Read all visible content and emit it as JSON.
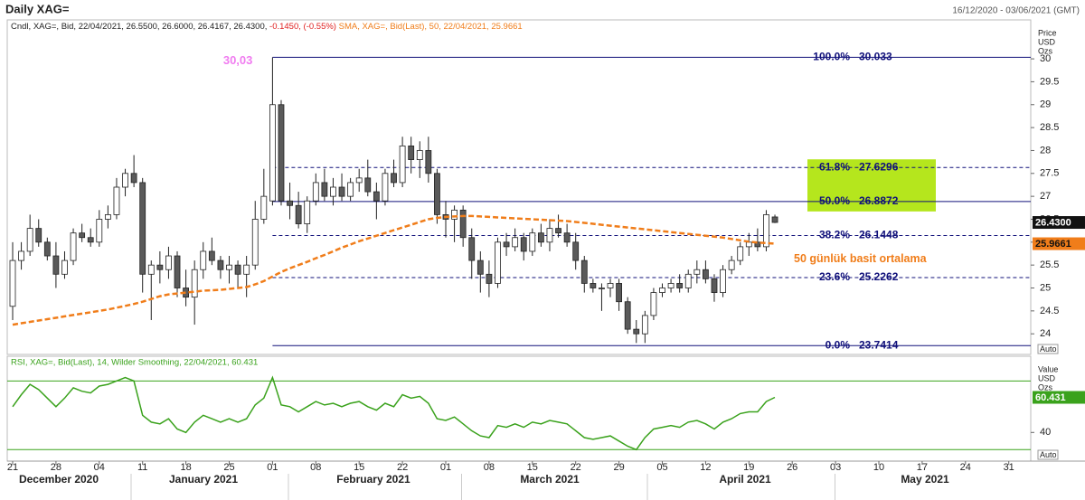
{
  "chart_data": {
    "type": "candlestick",
    "title": "Daily XAG=",
    "date_range": "16/12/2020 - 03/06/2021 (GMT)",
    "legend": {
      "candle": "Cndl, XAG=, Bid, 22/04/2021, 26.5500, 26.6000, 26.4167, 26.4300,",
      "change": "-0.1450, (-0.55%)",
      "sma": "SMA, XAG=, Bid(Last), 50, 22/04/2021, 25.9661"
    },
    "dates": [
      "2020-12-21",
      "2020-12-22",
      "2020-12-23",
      "2020-12-24",
      "2020-12-25",
      "2020-12-28",
      "2020-12-29",
      "2020-12-30",
      "2020-12-31",
      "2021-01-01",
      "2021-01-04",
      "2021-01-05",
      "2021-01-06",
      "2021-01-07",
      "2021-01-08",
      "2021-01-11",
      "2021-01-12",
      "2021-01-13",
      "2021-01-14",
      "2021-01-15",
      "2021-01-18",
      "2021-01-19",
      "2021-01-20",
      "2021-01-21",
      "2021-01-22",
      "2021-01-25",
      "2021-01-26",
      "2021-01-27",
      "2021-01-28",
      "2021-01-29",
      "2021-02-01",
      "2021-02-02",
      "2021-02-03",
      "2021-02-04",
      "2021-02-05",
      "2021-02-08",
      "2021-02-09",
      "2021-02-10",
      "2021-02-11",
      "2021-02-12",
      "2021-02-15",
      "2021-02-16",
      "2021-02-17",
      "2021-02-18",
      "2021-02-19",
      "2021-02-22",
      "2021-02-23",
      "2021-02-24",
      "2021-02-25",
      "2021-02-26",
      "2021-03-01",
      "2021-03-02",
      "2021-03-03",
      "2021-03-04",
      "2021-03-05",
      "2021-03-08",
      "2021-03-09",
      "2021-03-10",
      "2021-03-11",
      "2021-03-12",
      "2021-03-15",
      "2021-03-16",
      "2021-03-17",
      "2021-03-18",
      "2021-03-19",
      "2021-03-22",
      "2021-03-23",
      "2021-03-24",
      "2021-03-25",
      "2021-03-26",
      "2021-03-29",
      "2021-03-30",
      "2021-03-31",
      "2021-04-01",
      "2021-04-02",
      "2021-04-05",
      "2021-04-06",
      "2021-04-07",
      "2021-04-08",
      "2021-04-09",
      "2021-04-12",
      "2021-04-13",
      "2021-04-14",
      "2021-04-15",
      "2021-04-16",
      "2021-04-19",
      "2021-04-20",
      "2021-04-21",
      "2021-04-22"
    ],
    "open": [
      24.6,
      25.6,
      25.8,
      26.3,
      26.0,
      25.7,
      25.3,
      25.6,
      26.2,
      26.1,
      26.0,
      26.5,
      26.6,
      27.2,
      27.5,
      27.3,
      25.3,
      25.5,
      25.4,
      25.7,
      25.0,
      24.8,
      25.4,
      25.8,
      25.6,
      25.4,
      25.5,
      25.3,
      25.5,
      26.5,
      26.9,
      29.0,
      26.9,
      26.8,
      26.4,
      26.9,
      27.3,
      27.0,
      27.2,
      27.0,
      27.3,
      27.4,
      27.1,
      26.9,
      27.5,
      27.3,
      28.1,
      27.8,
      28.0,
      27.5,
      26.6,
      26.5,
      26.7,
      26.1,
      25.6,
      25.3,
      25.1,
      26.0,
      25.9,
      26.1,
      25.8,
      26.2,
      26.0,
      26.3,
      26.2,
      26.0,
      25.6,
      25.1,
      25.0,
      25.0,
      25.1,
      24.7,
      24.1,
      24.0,
      24.4,
      24.9,
      25.0,
      25.1,
      25.0,
      25.3,
      25.4,
      25.2,
      24.9,
      25.4,
      25.6,
      25.9,
      26.0,
      25.9,
      26.55
    ],
    "high": [
      26.0,
      26.0,
      26.6,
      26.5,
      26.1,
      26.0,
      25.8,
      26.3,
      26.4,
      26.3,
      26.7,
      26.8,
      27.4,
      27.6,
      27.9,
      27.4,
      25.6,
      25.8,
      25.9,
      25.8,
      25.4,
      25.6,
      26.0,
      26.1,
      25.7,
      25.7,
      25.6,
      25.7,
      26.9,
      27.6,
      30.03,
      29.1,
      27.3,
      27.1,
      27.0,
      27.5,
      27.6,
      27.4,
      27.5,
      27.4,
      27.6,
      27.8,
      27.3,
      27.6,
      27.8,
      28.3,
      28.3,
      28.2,
      28.3,
      27.6,
      26.9,
      26.8,
      26.8,
      26.3,
      25.8,
      25.6,
      26.1,
      26.2,
      26.3,
      26.2,
      26.3,
      26.4,
      26.5,
      26.6,
      26.4,
      26.2,
      25.7,
      25.2,
      25.1,
      25.2,
      25.2,
      24.8,
      24.3,
      24.5,
      25.0,
      25.1,
      25.2,
      25.3,
      25.4,
      25.6,
      25.6,
      25.3,
      25.5,
      25.7,
      26.0,
      26.2,
      26.3,
      26.7,
      26.6
    ],
    "low": [
      24.3,
      25.4,
      25.7,
      25.9,
      25.6,
      25.0,
      25.2,
      25.5,
      26.0,
      25.9,
      25.9,
      26.3,
      26.5,
      27.0,
      27.2,
      24.9,
      24.3,
      25.1,
      25.2,
      24.8,
      24.6,
      24.2,
      25.2,
      25.5,
      25.2,
      25.1,
      25.0,
      24.8,
      25.4,
      26.4,
      26.8,
      26.8,
      26.5,
      26.3,
      26.2,
      26.8,
      26.9,
      26.8,
      26.9,
      26.9,
      27.1,
      27.0,
      26.5,
      26.8,
      27.2,
      27.2,
      27.5,
      27.4,
      27.3,
      26.4,
      26.1,
      26.0,
      25.9,
      25.2,
      24.9,
      24.8,
      25.0,
      25.7,
      25.8,
      25.6,
      25.7,
      25.9,
      25.8,
      26.1,
      25.9,
      25.4,
      24.9,
      24.9,
      24.5,
      24.8,
      24.5,
      24.0,
      23.8,
      23.8,
      24.3,
      24.8,
      24.9,
      24.9,
      24.9,
      25.1,
      25.1,
      24.7,
      24.8,
      25.3,
      25.5,
      25.7,
      25.8,
      25.8,
      26.4167
    ],
    "close": [
      25.6,
      25.8,
      26.3,
      26.0,
      25.7,
      25.3,
      25.6,
      26.2,
      26.1,
      26.0,
      26.5,
      26.6,
      27.2,
      27.5,
      27.3,
      25.3,
      25.5,
      25.4,
      25.7,
      25.0,
      24.8,
      25.4,
      25.8,
      25.6,
      25.4,
      25.5,
      25.3,
      25.5,
      26.5,
      27.0,
      29.0,
      26.9,
      26.8,
      26.4,
      26.9,
      27.3,
      27.0,
      27.2,
      27.0,
      27.3,
      27.4,
      27.1,
      26.9,
      27.5,
      27.3,
      28.1,
      27.8,
      28.0,
      27.5,
      26.6,
      26.5,
      26.7,
      26.1,
      25.6,
      25.3,
      25.1,
      26.0,
      25.9,
      26.1,
      25.8,
      26.2,
      26.0,
      26.3,
      26.2,
      26.0,
      25.6,
      25.1,
      25.0,
      25.0,
      25.1,
      24.7,
      24.1,
      24.0,
      24.4,
      24.9,
      25.0,
      25.1,
      25.0,
      25.3,
      25.4,
      25.2,
      24.9,
      25.4,
      25.6,
      25.9,
      26.0,
      25.9,
      26.6,
      26.43
    ],
    "up_color": "#ffffff",
    "down_color": "#5a5a5a",
    "sma": {
      "color": "#f07d1a",
      "dashed": true,
      "values": [
        24.2,
        24.23,
        24.26,
        24.29,
        24.32,
        24.35,
        24.38,
        24.41,
        24.44,
        24.47,
        24.5,
        24.53,
        24.57,
        24.61,
        24.65,
        24.7,
        24.76,
        24.82,
        24.86,
        24.88,
        24.9,
        24.92,
        24.94,
        24.95,
        24.96,
        24.98,
        25.0,
        25.02,
        25.08,
        25.15,
        25.25,
        25.35,
        25.43,
        25.5,
        25.57,
        25.65,
        25.72,
        25.8,
        25.88,
        25.95,
        26.02,
        26.08,
        26.14,
        26.2,
        26.26,
        26.32,
        26.38,
        26.44,
        26.5,
        26.53,
        26.55,
        26.56,
        26.57,
        26.57,
        26.56,
        26.55,
        26.54,
        26.53,
        26.52,
        26.51,
        26.5,
        26.49,
        26.48,
        26.47,
        26.46,
        26.44,
        26.42,
        26.4,
        26.38,
        26.36,
        26.34,
        26.32,
        26.3,
        26.28,
        26.26,
        26.24,
        26.22,
        26.2,
        26.18,
        26.16,
        26.14,
        26.12,
        26.1,
        26.07,
        26.04,
        26.01,
        25.99,
        25.98,
        25.9661
      ]
    },
    "ylim": [
      23.55,
      30.85
    ],
    "yticks": [
      24,
      24.5,
      25,
      25.5,
      26,
      26.5,
      27,
      27.5,
      28,
      28.5,
      29,
      29.5,
      30
    ],
    "y_axis_label": [
      "Price",
      "USD",
      "Ozs"
    ],
    "scale_mode": "Auto",
    "tags": {
      "close": "26.4300",
      "sma": "25.9661"
    },
    "fib_levels": [
      {
        "label": "100.0%",
        "value": 30.033,
        "dashed": false
      },
      {
        "label": "61.8%",
        "value": 27.6296,
        "dashed": true
      },
      {
        "label": "50.0%",
        "value": 26.8872,
        "dashed": false
      },
      {
        "label": "38.2%",
        "value": 26.1448,
        "dashed": true
      },
      {
        "label": "23.6%",
        "value": 25.2262,
        "dashed": true
      },
      {
        "label": "0.0%",
        "value": 23.7414,
        "dashed": false
      }
    ],
    "fib_color": "#10107a",
    "highlight_color": "#b5e61d",
    "annotations": [
      {
        "text": "30,03",
        "color": "#f07cf0"
      },
      {
        "text": "50 günlük basit ortalama",
        "color": "#f07d1a"
      }
    ],
    "xticks": [
      {
        "value": "2020-12-21",
        "label": "21"
      },
      {
        "value": "2020-12-28",
        "label": "28"
      },
      {
        "value": "2021-01-04",
        "label": "04"
      },
      {
        "value": "2021-01-11",
        "label": "11"
      },
      {
        "value": "2021-01-18",
        "label": "18"
      },
      {
        "value": "2021-01-25",
        "label": "25"
      },
      {
        "value": "2021-02-01",
        "label": "01"
      },
      {
        "value": "2021-02-08",
        "label": "08"
      },
      {
        "value": "2021-02-15",
        "label": "15"
      },
      {
        "value": "2021-02-22",
        "label": "22"
      },
      {
        "value": "2021-03-01",
        "label": "01"
      },
      {
        "value": "2021-03-08",
        "label": "08"
      },
      {
        "value": "2021-03-15",
        "label": "15"
      },
      {
        "value": "2021-03-22",
        "label": "22"
      },
      {
        "value": "2021-03-29",
        "label": "29"
      },
      {
        "value": "2021-04-05",
        "label": "05"
      },
      {
        "value": "2021-04-12",
        "label": "12"
      },
      {
        "value": "2021-04-19",
        "label": "19"
      },
      {
        "value": "2021-04-26",
        "label": "26"
      },
      {
        "value": "2021-05-03",
        "label": "03"
      },
      {
        "value": "2021-05-10",
        "label": "10"
      },
      {
        "value": "2021-05-17",
        "label": "17"
      },
      {
        "value": "2021-05-24",
        "label": "24"
      },
      {
        "value": "2021-05-31",
        "label": "31"
      }
    ],
    "month_labels": [
      "December 2020",
      "January 2021",
      "February 2021",
      "March 2021",
      "April 2021",
      "May 2021"
    ],
    "rsi": {
      "legend": "RSI, XAG=, Bid(Last), 14, Wilder Smoothing, 22/04/2021, 60.431",
      "color": "#3aa21c",
      "values": [
        55,
        62,
        68,
        65,
        60,
        55,
        60,
        66,
        64,
        63,
        67,
        68,
        70,
        72,
        70,
        50,
        46,
        45,
        48,
        42,
        40,
        46,
        50,
        48,
        46,
        48,
        46,
        48,
        56,
        60,
        72,
        56,
        55,
        52,
        55,
        58,
        56,
        57,
        55,
        57,
        58,
        55,
        53,
        57,
        55,
        62,
        60,
        61,
        57,
        48,
        47,
        49,
        45,
        41,
        38,
        37,
        44,
        43,
        45,
        43,
        46,
        45,
        47,
        46,
        45,
        41,
        37,
        36,
        37,
        38,
        35,
        32,
        30,
        37,
        42,
        43,
        44,
        43,
        46,
        47,
        45,
        42,
        46,
        48,
        51,
        52,
        52,
        58,
        60.431
      ],
      "ylim": [
        23.3,
        84.4
      ],
      "yticks": [
        40
      ],
      "levels": [
        30,
        70
      ],
      "axis_label": [
        "Value",
        "USD",
        "Ozs"
      ],
      "tag": "60.431"
    }
  }
}
